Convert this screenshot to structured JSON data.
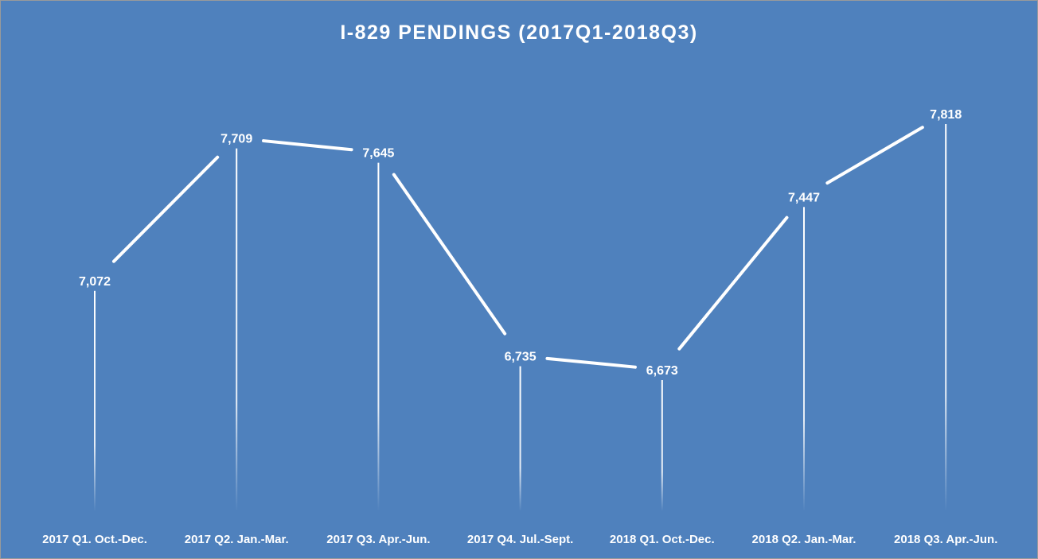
{
  "chart_data": {
    "type": "line",
    "title": "I-829 PENDINGS (2017Q1-2018Q3)",
    "xlabel": "",
    "ylabel": "",
    "categories": [
      "2017 Q1. Oct.-Dec.",
      "2017 Q2. Jan.-Mar.",
      "2017 Q3. Apr.-Jun.",
      "2017 Q4. Jul.-Sept.",
      "2018 Q1. Oct.-Dec.",
      "2018 Q2. Jan.-Mar.",
      "2018 Q3. Apr.-Jun."
    ],
    "series": [
      {
        "values": [
          7072,
          7709,
          7645,
          6735,
          6673,
          7447,
          7818
        ],
        "data_labels": [
          "7,072",
          "7,709",
          "7,645",
          "6,735",
          "6,673",
          "7,447",
          "7,818"
        ]
      }
    ],
    "ylim": [
      5200,
      8200
    ],
    "grid": false,
    "legend": "none",
    "drop_lines": true,
    "colors": {
      "background": "#4f81bd",
      "line": "#ffffff",
      "text": "#ffffff"
    }
  }
}
